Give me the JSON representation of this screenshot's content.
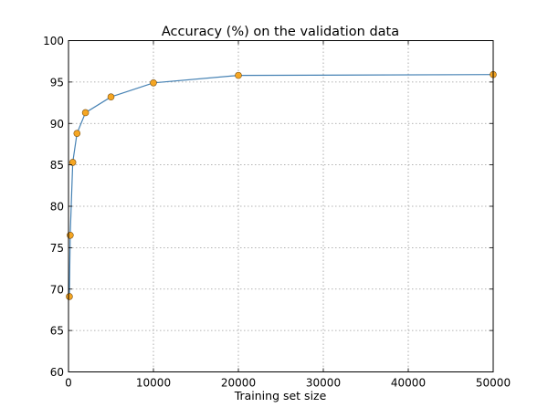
{
  "chart_data": {
    "type": "line",
    "title": "Accuracy (%) on the validation data",
    "xlabel": "Training set size",
    "ylabel": "",
    "xlim": [
      0,
      50000
    ],
    "ylim": [
      60,
      100
    ],
    "x_ticks": [
      0,
      10000,
      20000,
      30000,
      40000,
      50000
    ],
    "y_ticks": [
      60,
      65,
      70,
      75,
      80,
      85,
      90,
      95,
      100
    ],
    "grid": true,
    "legend": "none",
    "series": [
      {
        "x": [
          100,
          200,
          500,
          1000,
          2000,
          5000,
          10000,
          20000,
          50000
        ],
        "y": [
          69.1,
          76.5,
          85.3,
          88.8,
          91.3,
          93.2,
          94.9,
          95.8,
          95.9
        ]
      }
    ],
    "colors": {
      "line": "#4682b4",
      "marker_fill": "#f5a623",
      "marker_edge": "#7a4f10",
      "grid": "#9a9a9a",
      "axes": "#000000"
    }
  }
}
